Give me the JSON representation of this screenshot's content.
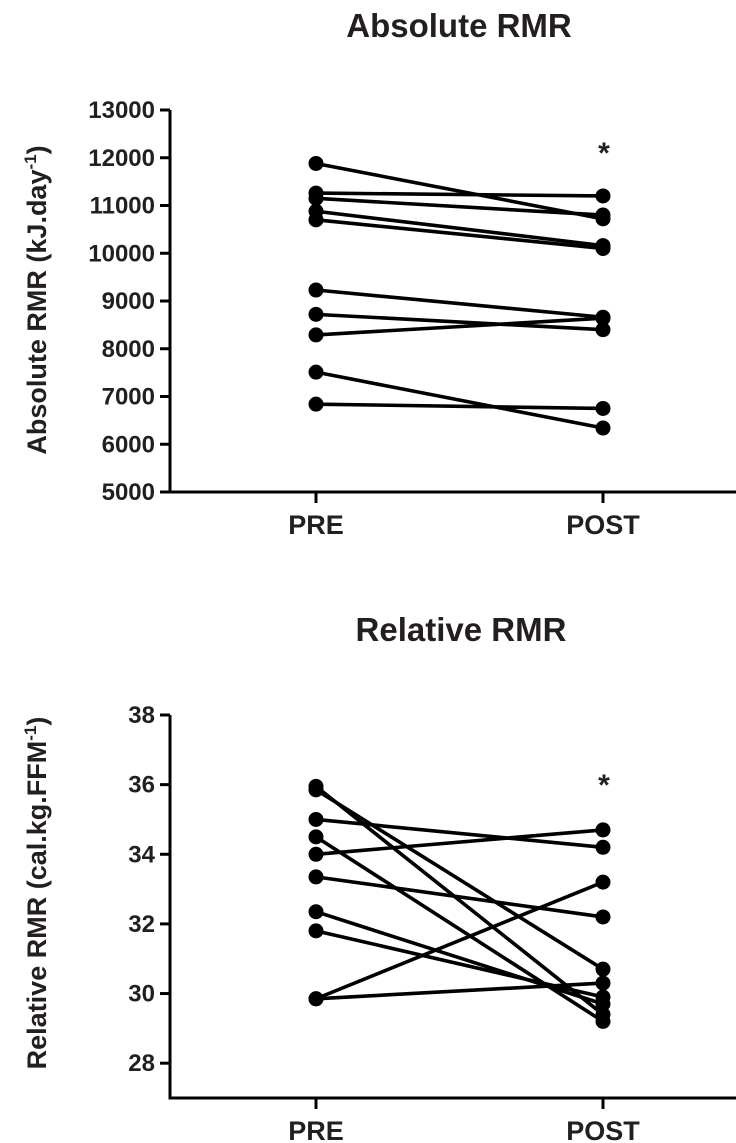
{
  "chart_data": [
    {
      "type": "line",
      "title": "Absolute RMR",
      "ylabel_main": "Absolute RMR (kJ.day",
      "ylabel_sup": "-1",
      "ylabel_close": ")",
      "categories": [
        "PRE",
        "POST"
      ],
      "ylim": [
        5000,
        13000
      ],
      "yticks": [
        "5000",
        "6000",
        "7000",
        "8000",
        "9000",
        "10000",
        "11000",
        "12000",
        "13000"
      ],
      "annotation": "*",
      "series": [
        {
          "values": [
            11880,
            10720
          ]
        },
        {
          "values": [
            11260,
            11200
          ]
        },
        {
          "values": [
            11150,
            10800
          ]
        },
        {
          "values": [
            10880,
            10160
          ]
        },
        {
          "values": [
            10700,
            10100
          ]
        },
        {
          "values": [
            9230,
            8660
          ]
        },
        {
          "values": [
            8720,
            8400
          ]
        },
        {
          "values": [
            8290,
            8640
          ]
        },
        {
          "values": [
            7510,
            6340
          ]
        },
        {
          "values": [
            6840,
            6750
          ]
        }
      ]
    },
    {
      "type": "line",
      "title": "Relative RMR",
      "ylabel_main": "Relative RMR (cal.kg.FFM",
      "ylabel_sup": "-1",
      "ylabel_close": ")",
      "categories": [
        "PRE",
        "POST"
      ],
      "ylim": [
        27,
        38
      ],
      "yticks": [
        "28",
        "30",
        "32",
        "34",
        "36",
        "38"
      ],
      "annotation": "*",
      "series": [
        {
          "values": [
            35.95,
            29.4
          ]
        },
        {
          "values": [
            35.85,
            30.7
          ]
        },
        {
          "values": [
            35.0,
            34.2
          ]
        },
        {
          "values": [
            34.5,
            29.2
          ]
        },
        {
          "values": [
            34.0,
            34.7
          ]
        },
        {
          "values": [
            33.35,
            32.2
          ]
        },
        {
          "values": [
            32.35,
            29.7
          ]
        },
        {
          "values": [
            31.8,
            29.9
          ]
        },
        {
          "values": [
            29.85,
            33.2
          ]
        },
        {
          "values": [
            29.85,
            30.3
          ]
        }
      ]
    }
  ]
}
